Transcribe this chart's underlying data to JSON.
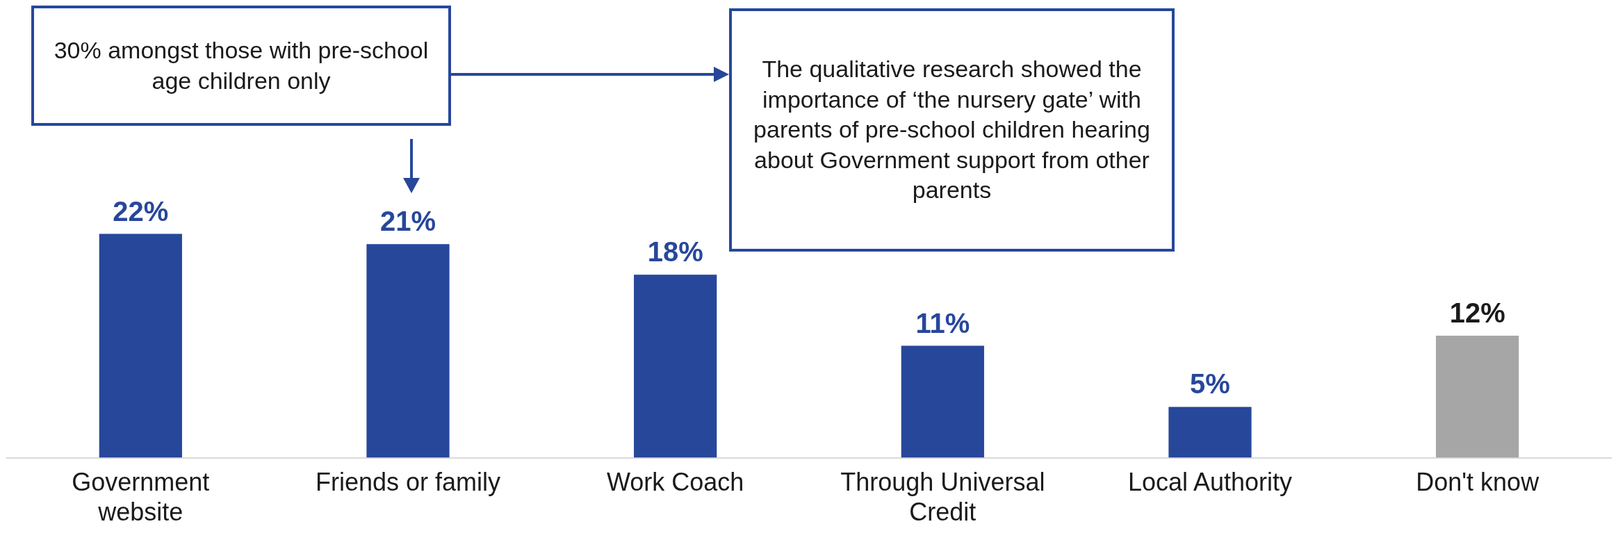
{
  "chart_data": {
    "type": "bar",
    "categories": [
      "Government website",
      "Friends or family",
      "Work Coach",
      "Through Universal Credit",
      "Local Authority",
      "Don't know"
    ],
    "values": [
      22,
      21,
      18,
      11,
      5,
      12
    ],
    "colors": [
      "#27479b",
      "#27479b",
      "#27479b",
      "#27479b",
      "#27479b",
      "#a6a6a6"
    ],
    "value_labels": [
      "22%",
      "21%",
      "18%",
      "11%",
      "5%",
      "12%"
    ],
    "annotations": [
      "30% amongst those with pre-school age children only",
      "The qualitative research showed the importance of ‘the nursery gate’ with parents of pre-school children hearing about Government support from other parents"
    ]
  }
}
